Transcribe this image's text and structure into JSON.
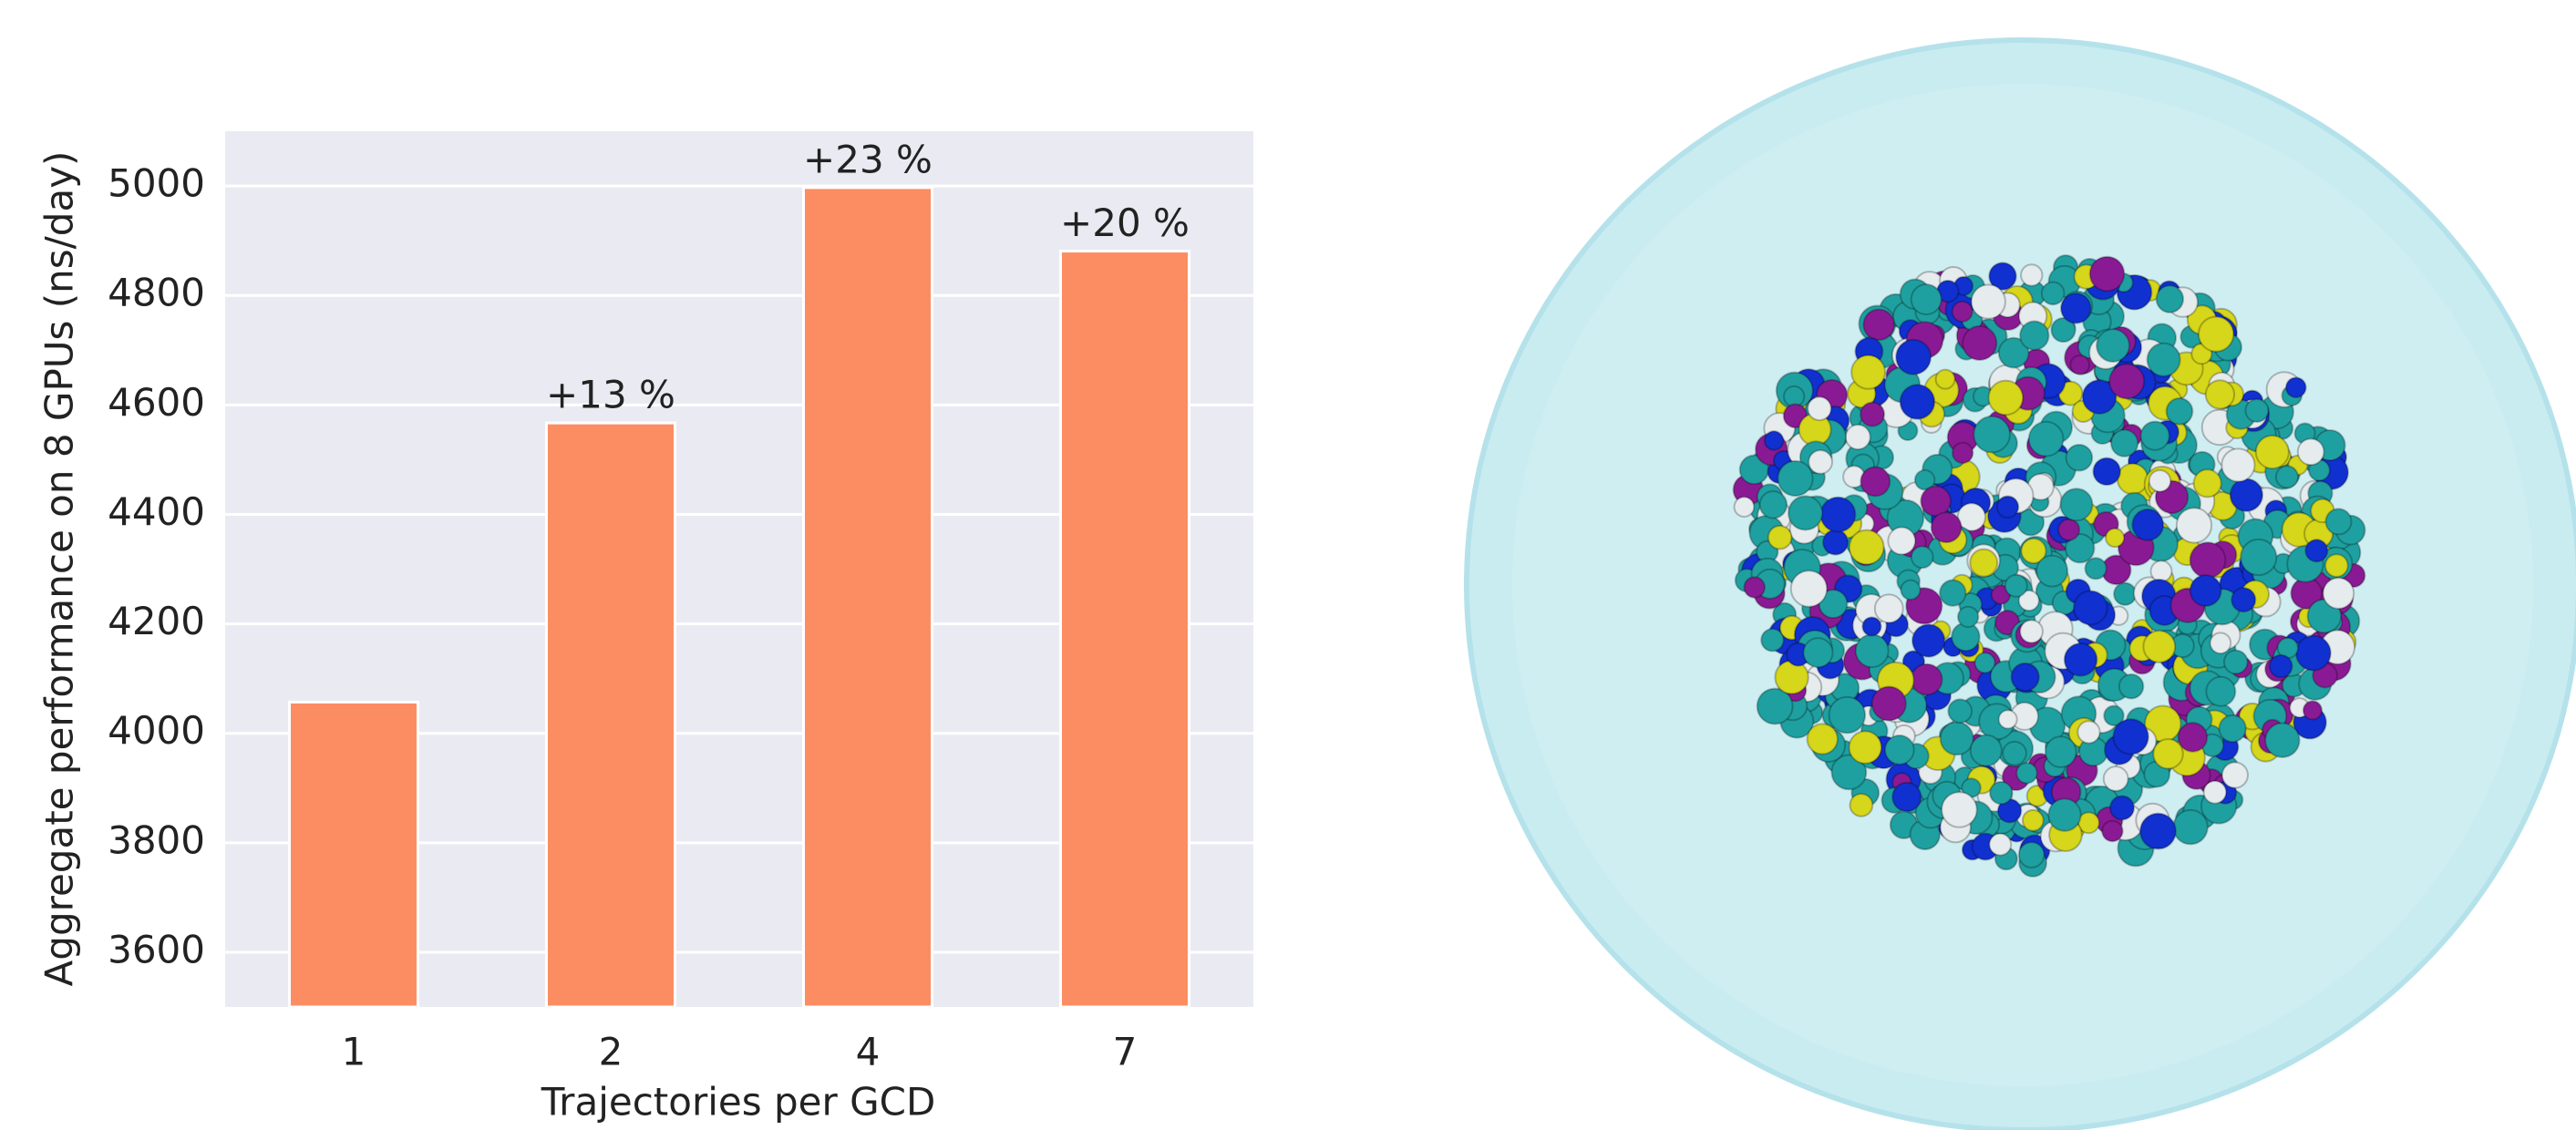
{
  "chart_data": {
    "type": "bar",
    "x_label": "Trajectories per GCD",
    "y_label": "Aggregate performance on 8 GPUs (ns/day)",
    "categories": [
      "1",
      "2",
      "4",
      "7"
    ],
    "values": [
      4057,
      4567,
      4997,
      4881
    ],
    "value_labels": [
      null,
      "+13 %",
      "+23 %",
      "+20 %"
    ],
    "color": "#fc8d62",
    "ylim": [
      3500,
      5100
    ],
    "yticks": [
      3600,
      3800,
      4000,
      4200,
      4400,
      4600,
      4800,
      5000
    ],
    "grid": true
  }
}
